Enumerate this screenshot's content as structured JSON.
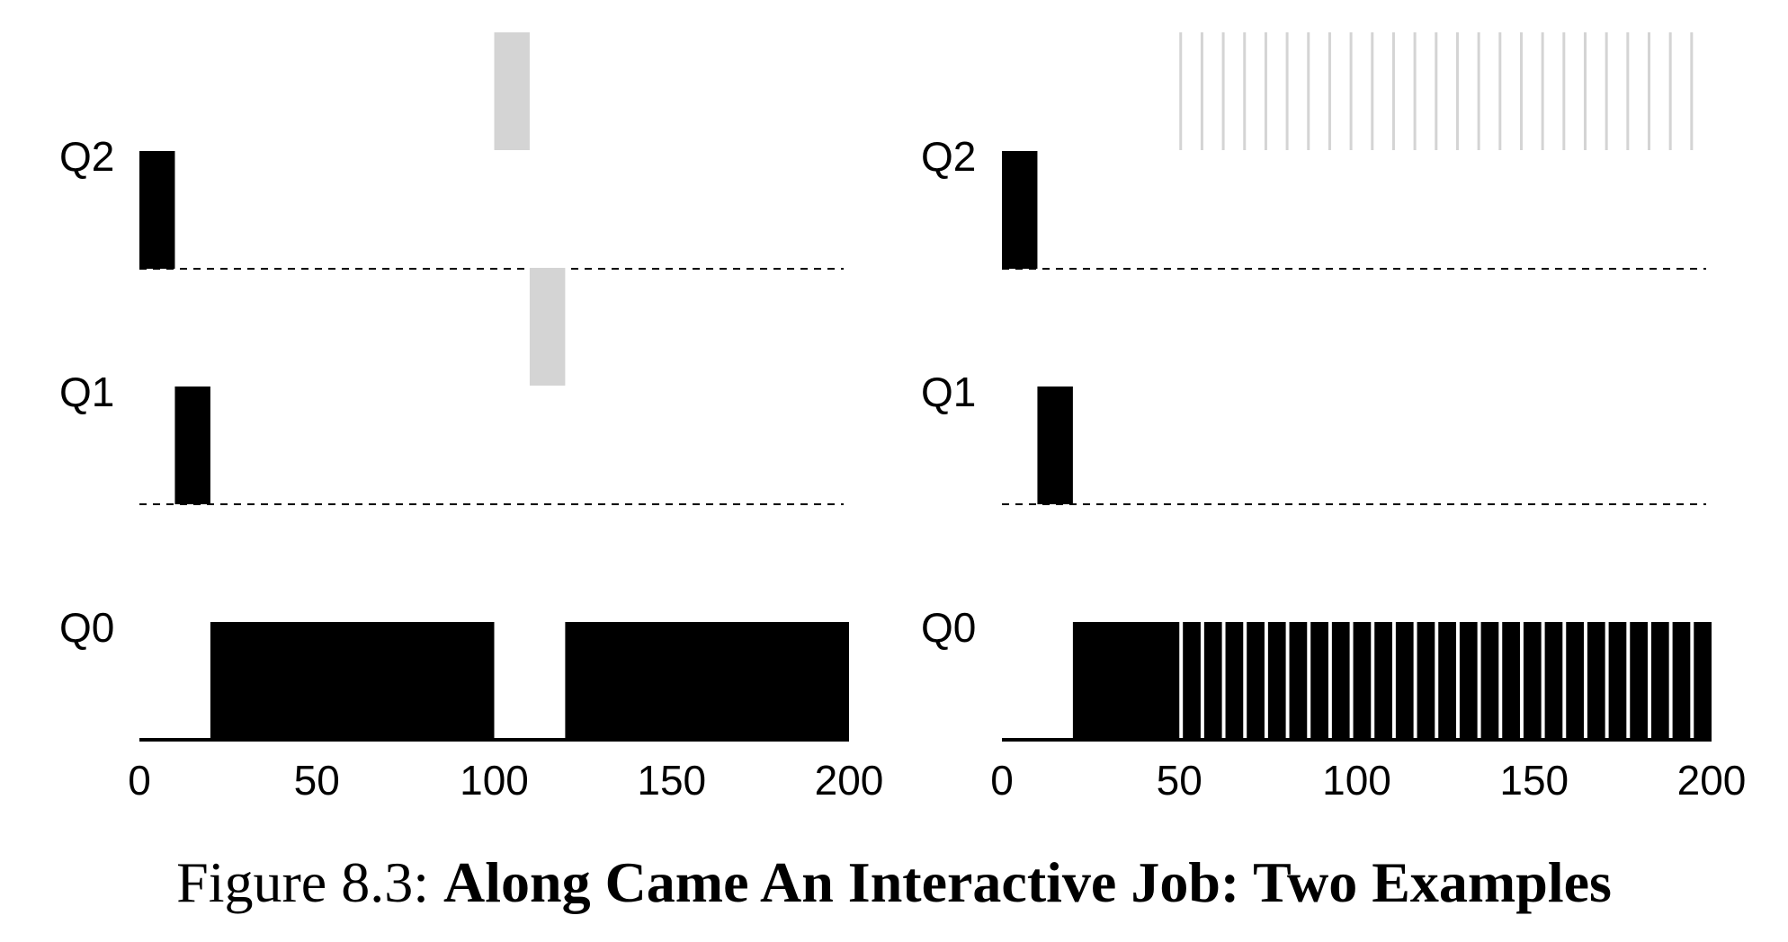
{
  "chart_data": [
    {
      "type": "bar",
      "xlim": [
        0,
        200
      ],
      "xticks": [
        "0",
        "50",
        "100",
        "150",
        "200"
      ],
      "queues": [
        "Q2",
        "Q1",
        "Q0"
      ],
      "colors": {
        "long_job": "#000000",
        "interactive_job": "#d4d4d4"
      },
      "segments": [
        {
          "job": "long",
          "queue": "Q2",
          "start": 0,
          "end": 10
        },
        {
          "job": "long",
          "queue": "Q1",
          "start": 10,
          "end": 20
        },
        {
          "job": "long",
          "queue": "Q0",
          "start": 20,
          "end": 100
        },
        {
          "job": "interactive",
          "queue": "Q2",
          "start": 100,
          "end": 110
        },
        {
          "job": "interactive",
          "queue": "Q1",
          "start": 110,
          "end": 120
        },
        {
          "job": "long",
          "queue": "Q0",
          "start": 120,
          "end": 200
        }
      ]
    },
    {
      "type": "bar",
      "xlim": [
        0,
        200
      ],
      "xticks": [
        "0",
        "50",
        "100",
        "150",
        "200"
      ],
      "queues": [
        "Q2",
        "Q1",
        "Q0"
      ],
      "colors": {
        "long_job": "#000000",
        "interactive_job": "#d4d4d4"
      },
      "segments": [
        {
          "job": "long",
          "queue": "Q2",
          "start": 0,
          "end": 10
        },
        {
          "job": "long",
          "queue": "Q1",
          "start": 10,
          "end": 20
        },
        {
          "job": "long",
          "queue": "Q0",
          "start": 20,
          "end": 50
        }
      ],
      "interleaved": {
        "start": 50,
        "end": 200,
        "period": 6,
        "interactive_run": 1,
        "interactive_queue": "Q2",
        "long_queue": "Q0"
      }
    }
  ],
  "caption": {
    "label": "Figure 8.3:",
    "title": "Along Came An Interactive Job: Two Examples"
  }
}
